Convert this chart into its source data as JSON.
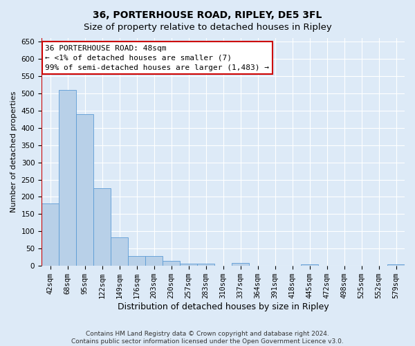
{
  "title": "36, PORTERHOUSE ROAD, RIPLEY, DE5 3FL",
  "subtitle": "Size of property relative to detached houses in Ripley",
  "xlabel": "Distribution of detached houses by size in Ripley",
  "ylabel": "Number of detached properties",
  "categories": [
    "42sqm",
    "68sqm",
    "95sqm",
    "122sqm",
    "149sqm",
    "176sqm",
    "203sqm",
    "230sqm",
    "257sqm",
    "283sqm",
    "310sqm",
    "337sqm",
    "364sqm",
    "391sqm",
    "418sqm",
    "445sqm",
    "472sqm",
    "498sqm",
    "525sqm",
    "552sqm",
    "579sqm"
  ],
  "values": [
    180,
    510,
    440,
    225,
    82,
    28,
    28,
    14,
    7,
    7,
    0,
    8,
    0,
    0,
    0,
    5,
    0,
    0,
    0,
    0,
    5
  ],
  "bar_color": "#b8d0e8",
  "bar_edge_color": "#5b9bd5",
  "highlight_line_color": "#cc0000",
  "annotation_line1": "36 PORTERHOUSE ROAD: 48sqm",
  "annotation_line2": "← <1% of detached houses are smaller (7)",
  "annotation_line3": "99% of semi-detached houses are larger (1,483) →",
  "annotation_box_color": "#ffffff",
  "annotation_box_edge_color": "#cc0000",
  "ylim": [
    0,
    660
  ],
  "yticks": [
    0,
    50,
    100,
    150,
    200,
    250,
    300,
    350,
    400,
    450,
    500,
    550,
    600,
    650
  ],
  "bg_color": "#ddeaf7",
  "plot_bg_color": "#ddeaf7",
  "footer_text": "Contains HM Land Registry data © Crown copyright and database right 2024.\nContains public sector information licensed under the Open Government Licence v3.0.",
  "title_fontsize": 10,
  "subtitle_fontsize": 9.5,
  "xlabel_fontsize": 9,
  "ylabel_fontsize": 8,
  "tick_fontsize": 7.5,
  "annotation_fontsize": 8,
  "footer_fontsize": 6.5
}
